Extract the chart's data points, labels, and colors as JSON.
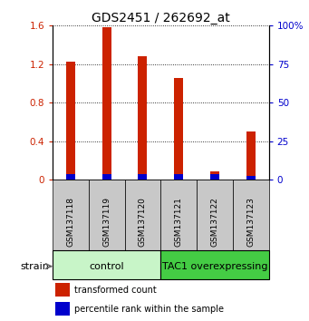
{
  "title": "GDS2451 / 262692_at",
  "samples": [
    "GSM137118",
    "GSM137119",
    "GSM137120",
    "GSM137121",
    "GSM137122",
    "GSM137123"
  ],
  "red_values": [
    1.23,
    1.585,
    1.285,
    1.06,
    0.09,
    0.505
  ],
  "blue_values_pct": [
    3.5,
    3.5,
    3.5,
    3.5,
    3.5,
    2.5
  ],
  "groups": [
    {
      "label": "control",
      "start": 0,
      "end": 3,
      "color": "#c8f5c8"
    },
    {
      "label": "TAC1 overexpressing",
      "start": 3,
      "end": 6,
      "color": "#44cc44"
    }
  ],
  "ylim_left": [
    0,
    1.6
  ],
  "ylim_right": [
    0,
    100
  ],
  "yticks_left": [
    0.0,
    0.4,
    0.8,
    1.2,
    1.6
  ],
  "ytick_labels_left": [
    "0",
    "0.4",
    "0.8",
    "1.2",
    "1.6"
  ],
  "yticks_right": [
    0,
    25,
    50,
    75,
    100
  ],
  "ytick_labels_right": [
    "0",
    "25",
    "50",
    "75",
    "100%"
  ],
  "red_color": "#cc2200",
  "blue_color": "#0000cc",
  "bar_width": 0.25,
  "legend_red": "transformed count",
  "legend_blue": "percentile rank within the sample",
  "strain_label": "strain",
  "sample_box_color": "#c8c8c8",
  "title_fontsize": 10,
  "tick_fontsize": 7.5,
  "sample_fontsize": 6.5,
  "group_fontsize": 8,
  "legend_fontsize": 7
}
